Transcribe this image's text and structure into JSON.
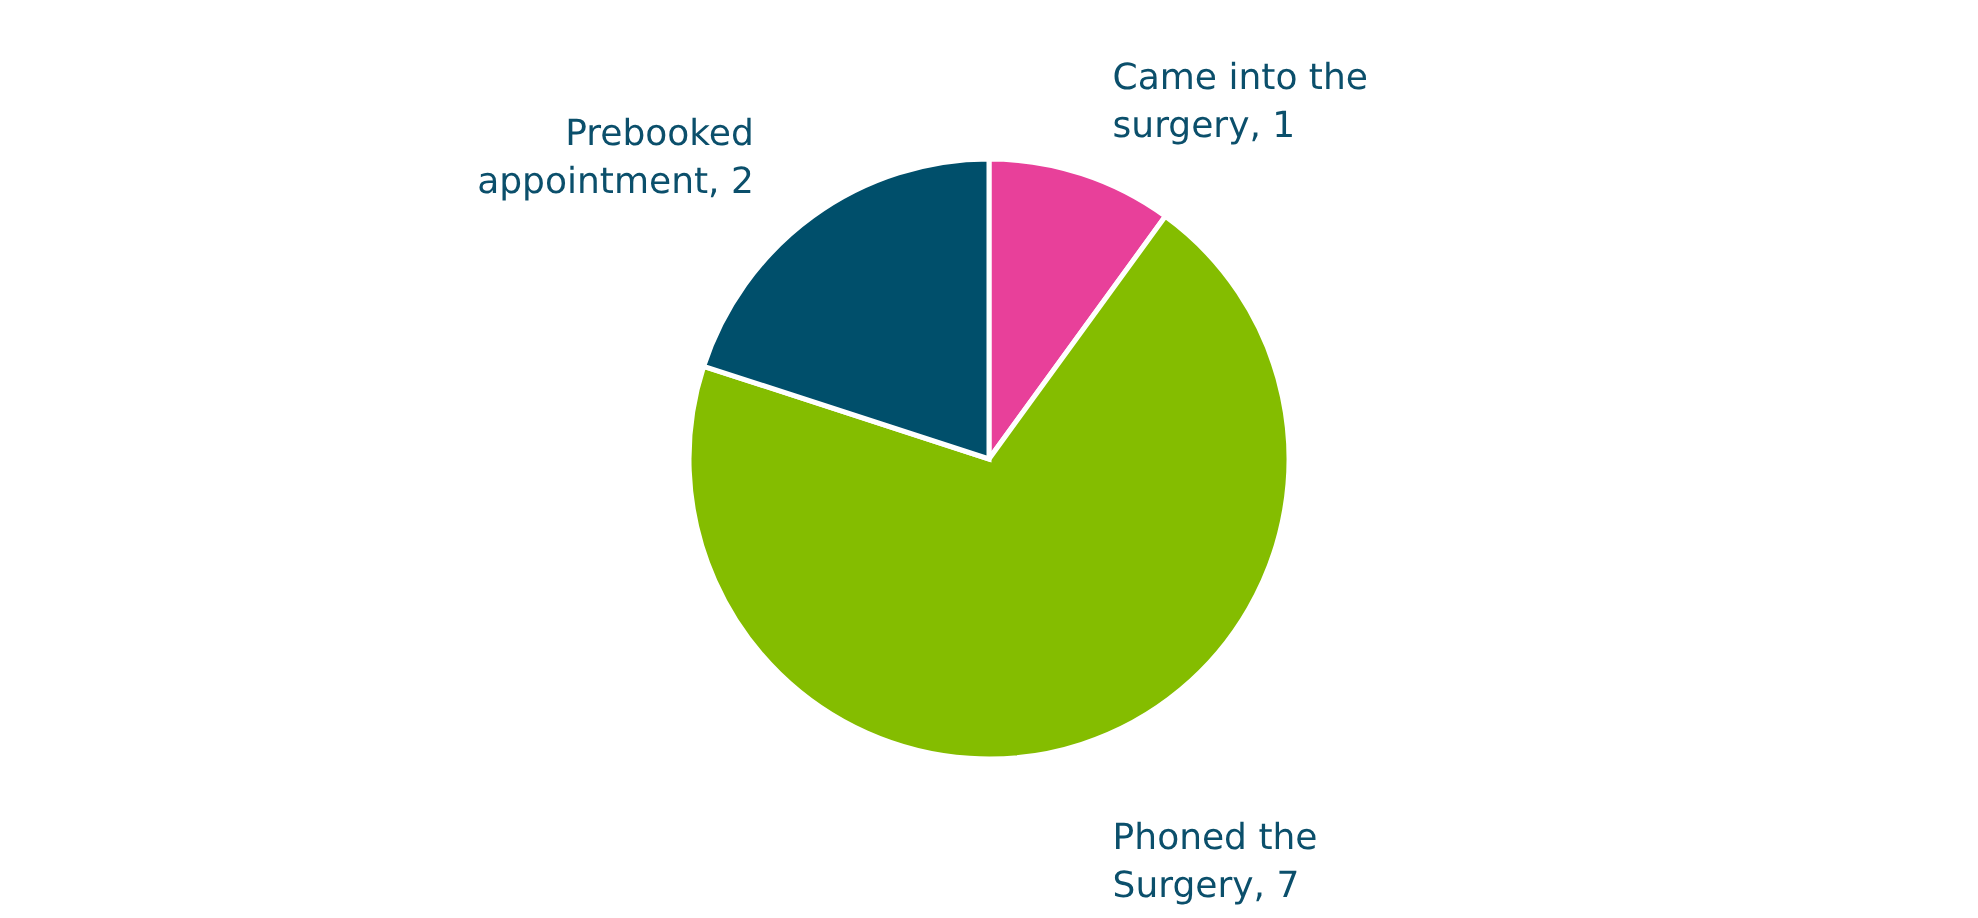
{
  "chart_data": {
    "type": "pie",
    "categories": [
      "Came into the surgery, 1",
      "Phoned the Surgery, 7",
      "Prebooked appointment, 2"
    ],
    "values": [
      1,
      7,
      2
    ],
    "colors": [
      "#e8409a",
      "#84bd00",
      "#004f6b"
    ]
  }
}
